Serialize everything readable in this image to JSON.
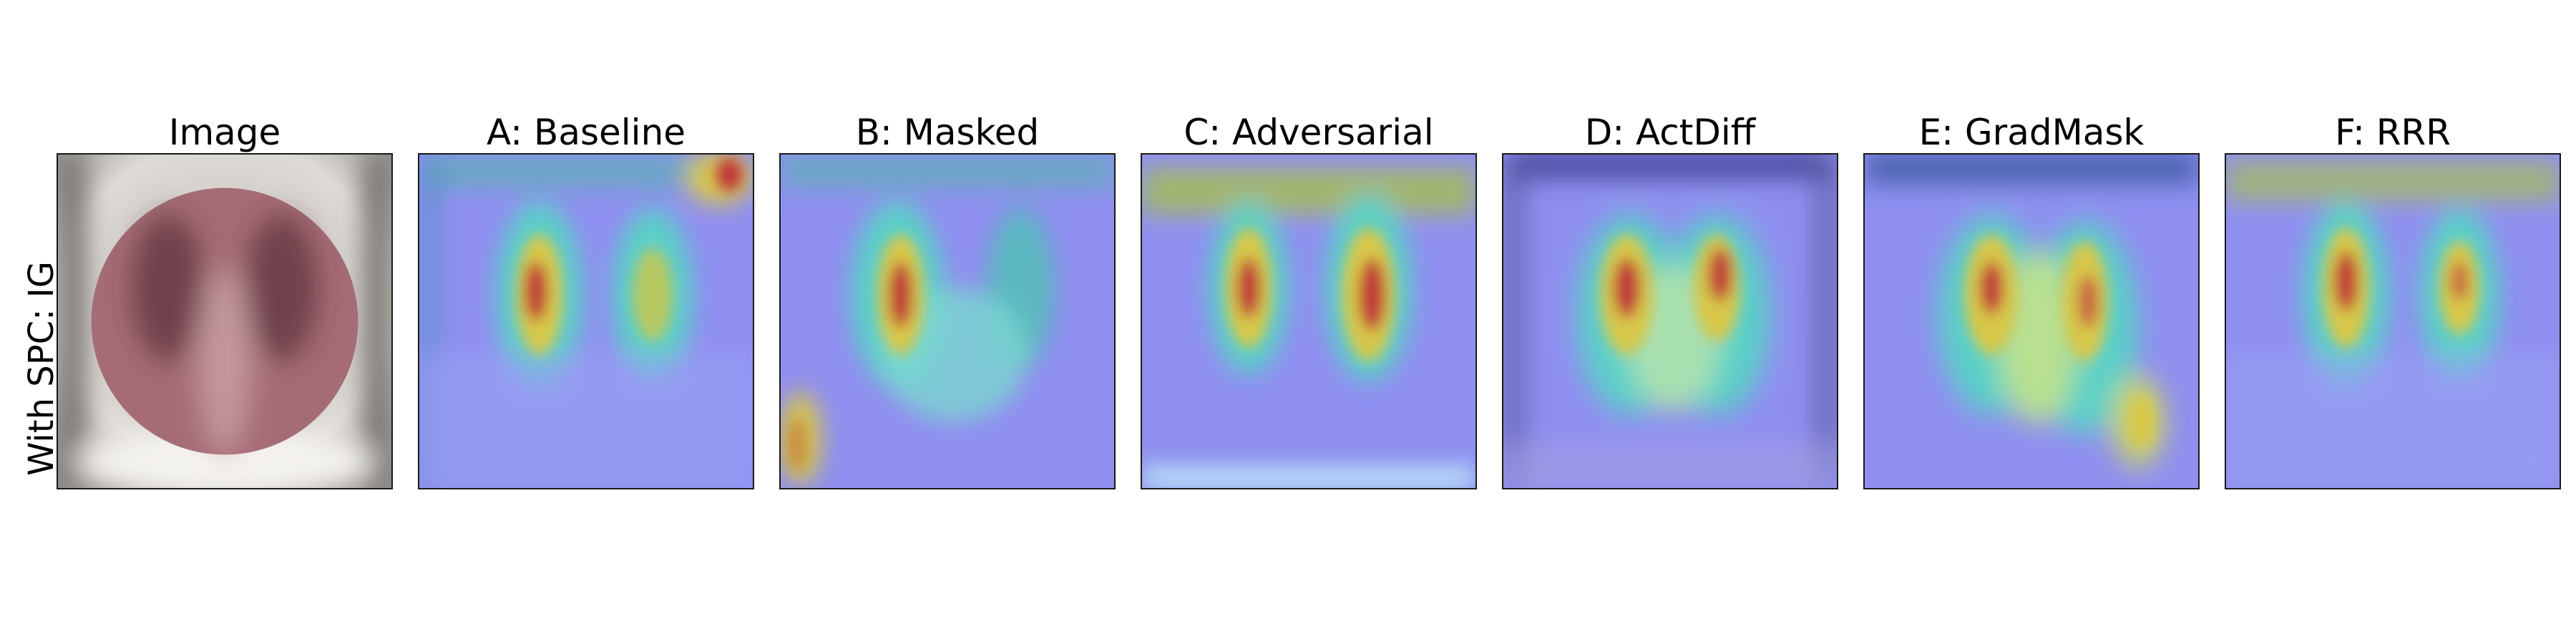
{
  "row_label": "With SPC: IG",
  "panels": [
    {
      "id": "image",
      "title": "Image",
      "kind": "xray"
    },
    {
      "id": "baseline",
      "title": "A: Baseline",
      "kind": "heatmap"
    },
    {
      "id": "masked",
      "title": "B: Masked",
      "kind": "heatmap"
    },
    {
      "id": "adversarial",
      "title": "C: Adversarial",
      "kind": "heatmap"
    },
    {
      "id": "actdiff",
      "title": "D: ActDiff",
      "kind": "heatmap"
    },
    {
      "id": "gradmask",
      "title": "E: GradMask",
      "kind": "heatmap"
    },
    {
      "id": "rrr",
      "title": "F: RRR",
      "kind": "heatmap"
    }
  ],
  "colors": {
    "heatmap_background": "#8f8ff0",
    "heatmap_cool": "#5ad0c8",
    "heatmap_warm": "#d8c84a",
    "heatmap_hot": "#c03838",
    "overlay_circle": "#9a5a66",
    "xray_background": "#cfcbc6"
  }
}
